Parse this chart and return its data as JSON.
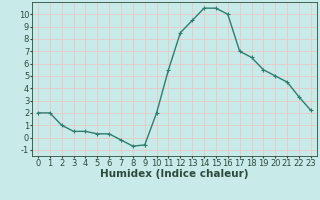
{
  "x": [
    0,
    1,
    2,
    3,
    4,
    5,
    6,
    7,
    8,
    9,
    10,
    11,
    12,
    13,
    14,
    15,
    16,
    17,
    18,
    19,
    20,
    21,
    22,
    23
  ],
  "y": [
    2,
    2,
    1,
    0.5,
    0.5,
    0.3,
    0.3,
    -0.2,
    -0.7,
    -0.6,
    2,
    5.5,
    8.5,
    9.5,
    10.5,
    10.5,
    10,
    7,
    6.5,
    5.5,
    5,
    4.5,
    3.3,
    2.2
  ],
  "line_color": "#2e7d6e",
  "marker": "+",
  "marker_size": 3,
  "background_color": "#c8eae8",
  "grid_color_major": "#e8c8c8",
  "grid_color_minor": "#e8c8c8",
  "xlabel": "Humidex (Indice chaleur)",
  "xlim": [
    -0.5,
    23.5
  ],
  "ylim": [
    -1.5,
    11
  ],
  "xticks": [
    0,
    1,
    2,
    3,
    4,
    5,
    6,
    7,
    8,
    9,
    10,
    11,
    12,
    13,
    14,
    15,
    16,
    17,
    18,
    19,
    20,
    21,
    22,
    23
  ],
  "yticks": [
    -1,
    0,
    1,
    2,
    3,
    4,
    5,
    6,
    7,
    8,
    9,
    10
  ],
  "font_color": "#2e4a3e",
  "tick_fontsize": 6,
  "xlabel_fontsize": 7.5,
  "line_width": 1.0
}
